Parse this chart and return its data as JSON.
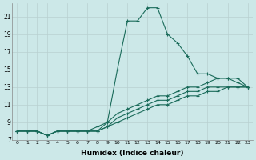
{
  "xlabel": "Humidex (Indice chaleur)",
  "bg_color": "#cce8e8",
  "line_color": "#1a6b5a",
  "grid_color": "#b8d0d0",
  "xlim": [
    -0.5,
    23.5
  ],
  "ylim": [
    7,
    22.5
  ],
  "xticks": [
    0,
    1,
    2,
    3,
    4,
    5,
    6,
    7,
    8,
    9,
    10,
    11,
    12,
    13,
    14,
    15,
    16,
    17,
    18,
    19,
    20,
    21,
    22,
    23
  ],
  "yticks": [
    7,
    9,
    11,
    13,
    15,
    17,
    19,
    21
  ],
  "series": [
    {
      "x": [
        0,
        1,
        2,
        3,
        4,
        5,
        6,
        7,
        8,
        9,
        10,
        11,
        12,
        13,
        14,
        15,
        16,
        17,
        18,
        19,
        20,
        21,
        22,
        23
      ],
      "y": [
        8,
        8,
        8,
        7.5,
        8,
        8,
        8,
        8,
        8,
        8.5,
        9,
        9.5,
        10,
        10.5,
        11,
        11,
        11.5,
        12,
        12,
        12.5,
        12.5,
        13,
        13,
        13
      ]
    },
    {
      "x": [
        0,
        1,
        2,
        3,
        4,
        5,
        6,
        7,
        8,
        9,
        10,
        11,
        12,
        13,
        14,
        15,
        16,
        17,
        18,
        19,
        20,
        21,
        22,
        23
      ],
      "y": [
        8,
        8,
        8,
        7.5,
        8,
        8,
        8,
        8,
        8,
        8.5,
        9.5,
        10,
        10.5,
        11,
        11.5,
        11.5,
        12,
        12.5,
        12.5,
        13,
        13,
        13,
        13,
        13
      ]
    },
    {
      "x": [
        0,
        1,
        2,
        3,
        4,
        5,
        6,
        7,
        8,
        9,
        10,
        11,
        12,
        13,
        14,
        15,
        16,
        17,
        18,
        19,
        20,
        21,
        22,
        23
      ],
      "y": [
        8,
        8,
        8,
        7.5,
        8,
        8,
        8,
        8,
        8.5,
        9,
        10,
        10.5,
        11,
        11.5,
        12,
        12,
        12.5,
        13,
        13,
        13.5,
        14,
        14,
        14,
        13
      ]
    },
    {
      "x": [
        0,
        1,
        2,
        3,
        4,
        5,
        6,
        7,
        8,
        9,
        10,
        11,
        12,
        13,
        14,
        15,
        16,
        17,
        18,
        19,
        20,
        21,
        22,
        23
      ],
      "y": [
        8,
        8,
        8,
        7.5,
        8,
        8,
        8,
        8,
        8,
        9,
        15,
        20.5,
        20.5,
        22,
        22,
        19,
        18,
        16.5,
        14.5,
        14.5,
        14,
        14,
        13.5,
        13
      ]
    }
  ]
}
